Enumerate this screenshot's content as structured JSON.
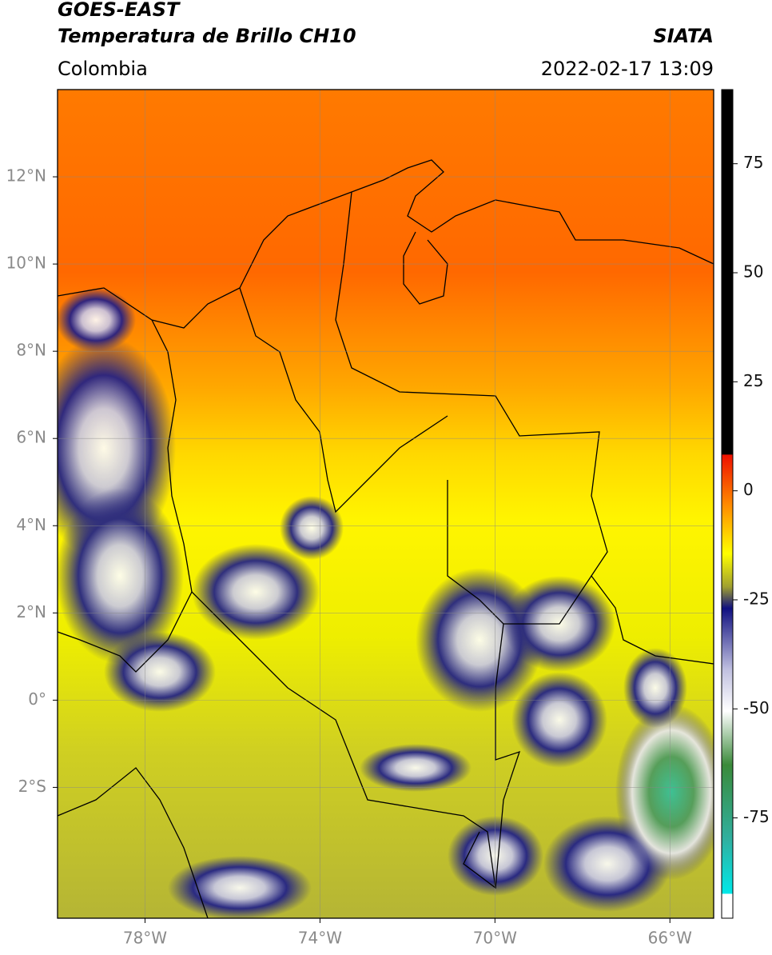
{
  "header": {
    "title": "GOES-EAST",
    "subtitle": "Temperatura de Brillo CH10",
    "region": "Colombia",
    "source": "SIATA",
    "datetime": "2022-02-17 13:09"
  },
  "map": {
    "xlim": [
      -80,
      -65
    ],
    "ylim": [
      -5,
      14
    ],
    "xticks": [
      {
        "value": -78,
        "label": "78°W"
      },
      {
        "value": -74,
        "label": "74°W"
      },
      {
        "value": -70,
        "label": "70°W"
      },
      {
        "value": -66,
        "label": "66°W"
      }
    ],
    "yticks": [
      {
        "value": 12,
        "label": "12°N"
      },
      {
        "value": 10,
        "label": "10°N"
      },
      {
        "value": 8,
        "label": "8°N"
      },
      {
        "value": 6,
        "label": "6°N"
      },
      {
        "value": 4,
        "label": "4°N"
      },
      {
        "value": 2,
        "label": "2°N"
      },
      {
        "value": 0,
        "label": "0°"
      },
      {
        "value": -2,
        "label": "2°S"
      }
    ]
  },
  "colorbar": {
    "lim": [
      -98,
      92
    ],
    "ticks": [
      75,
      50,
      25,
      0,
      -25,
      -50,
      -75
    ]
  }
}
